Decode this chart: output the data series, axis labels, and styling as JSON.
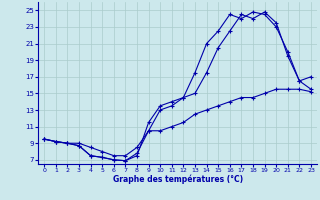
{
  "title": "Graphe des températures (°C)",
  "bg_color": "#cce8ec",
  "line_color": "#0000aa",
  "grid_color": "#aacccc",
  "xlim": [
    -0.5,
    23.5
  ],
  "ylim": [
    6.5,
    26.0
  ],
  "xticks": [
    0,
    1,
    2,
    3,
    4,
    5,
    6,
    7,
    8,
    9,
    10,
    11,
    12,
    13,
    14,
    15,
    16,
    17,
    18,
    19,
    20,
    21,
    22,
    23
  ],
  "yticks": [
    7,
    9,
    11,
    13,
    15,
    17,
    19,
    21,
    23,
    25
  ],
  "line1_y": [
    9.5,
    9.2,
    9.0,
    8.7,
    7.5,
    7.3,
    7.0,
    6.9,
    7.5,
    11.5,
    13.5,
    14.0,
    14.5,
    15.0,
    17.5,
    20.5,
    22.5,
    24.5,
    24.0,
    24.8,
    23.5,
    19.5,
    16.5,
    17.0
  ],
  "line2_y": [
    9.5,
    9.2,
    9.0,
    8.7,
    7.5,
    7.3,
    7.0,
    6.9,
    7.8,
    10.5,
    13.0,
    13.5,
    14.5,
    17.5,
    21.0,
    22.5,
    24.5,
    24.0,
    24.8,
    24.5,
    23.0,
    20.0,
    16.5,
    15.5
  ],
  "line3_y": [
    9.5,
    9.2,
    9.0,
    9.0,
    8.5,
    8.0,
    7.5,
    7.5,
    8.5,
    10.5,
    10.5,
    11.0,
    11.5,
    12.5,
    13.0,
    13.5,
    14.0,
    14.5,
    14.5,
    15.0,
    15.5,
    15.5,
    15.5,
    15.2
  ]
}
